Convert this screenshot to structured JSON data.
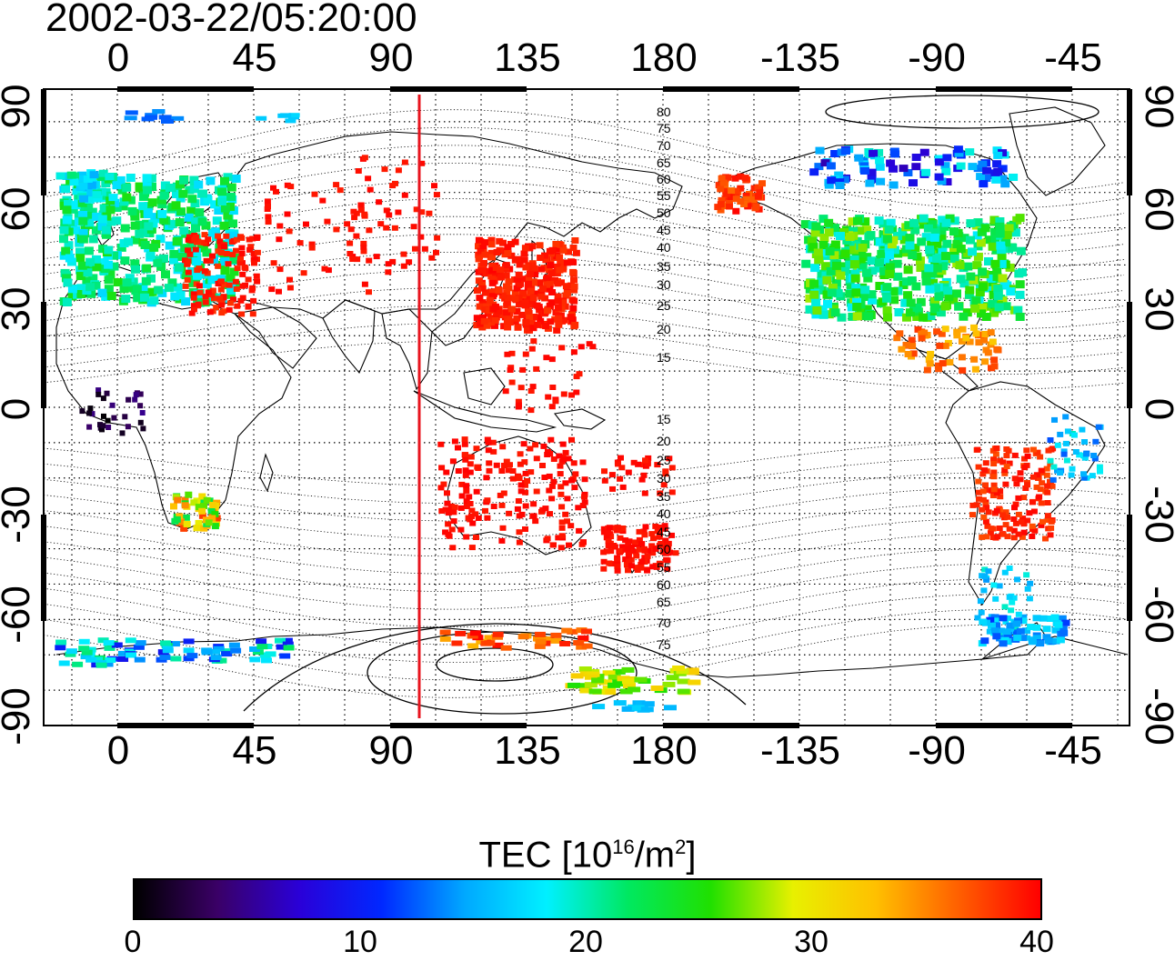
{
  "title": "2002-03-22/05:20:00",
  "map": {
    "top_lon_labels": [
      "0",
      "45",
      "90",
      "135",
      "180",
      "-135",
      "-90",
      "-45"
    ],
    "bottom_lon_labels": [
      "0",
      "45",
      "90",
      "135",
      "180",
      "-135",
      "-90",
      "-45"
    ],
    "left_lat_labels": [
      "90",
      "60",
      "30",
      "0",
      "-30",
      "-60",
      "-90"
    ],
    "right_lat_labels": [
      "90",
      "60",
      "30",
      "0",
      "-30",
      "-60",
      "-90"
    ],
    "contour_labels_north": [
      "80",
      "75",
      "70",
      "65",
      "60",
      "55",
      "50",
      "45",
      "40",
      "35",
      "30",
      "25",
      "20",
      "15"
    ],
    "contour_labels_south": [
      "15",
      "20",
      "25",
      "30",
      "35",
      "40",
      "45",
      "50",
      "55",
      "60",
      "65",
      "70",
      "75"
    ],
    "meridian_marker_lon": 100,
    "marker_color": "#e8141e"
  },
  "colorbar": {
    "label_prefix": "TEC  [10",
    "label_exp": "16",
    "label_mid": "/m",
    "label_exp2": "2",
    "label_suffix": "]",
    "ticks": [
      "0",
      "10",
      "20",
      "30",
      "40"
    ],
    "colors": [
      "#000000",
      "#3a0066",
      "#2a00d8",
      "#0028ff",
      "#00a8ff",
      "#00f0ff",
      "#00e860",
      "#20e000",
      "#e8f000",
      "#ffc000",
      "#ff6000",
      "#ff0000"
    ]
  }
}
